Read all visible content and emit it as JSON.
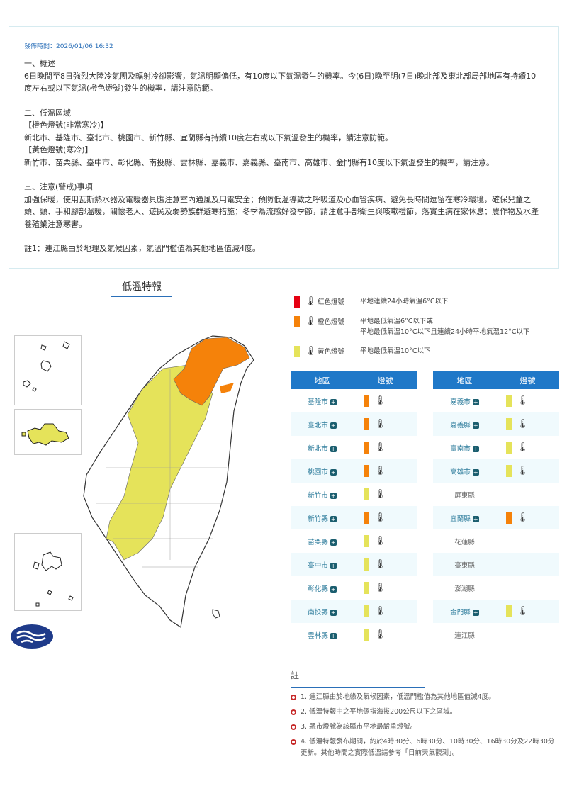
{
  "notice": {
    "pubtime": "發佈時間：2026/01/06 16:32",
    "s1_title": "一、概述",
    "s1_body": "6日晚間至8日強烈大陸冷氣團及輻射冷卻影響，氣溫明顯偏低，有10度以下氣溫發生的機率。今(6日)晚至明(7日)晚北部及東北部局部地區有持續10度左右或以下氣溫(橙色燈號)發生的機率，請注意防範。",
    "s2_title": "二、低溫區域",
    "orange_head": "【橙色燈號(非常寒冷)】",
    "orange_body": "新北市、基隆市、臺北市、桃園市、新竹縣、宜蘭縣有持續10度左右或以下氣溫發生的機率，請注意防範。",
    "yellow_head": "【黃色燈號(寒冷)】",
    "yellow_body": "新竹市、苗栗縣、臺中市、彰化縣、南投縣、雲林縣、嘉義市、嘉義縣、臺南市、高雄市、金門縣有10度以下氣溫發生的機率，請注意。",
    "s3_title": "三、注意(警戒)事項",
    "s3_body": "加強保暖，使用瓦斯熱水器及電暖器具應注意室內通風及用電安全；預防低溫導致之呼吸道及心血管疾病、避免長時間逗留在寒冷環境，確保兒童之頭、頸、手和腳部溫暖，關懷老人、遊民及弱勢族群避寒措施；冬季為流感好發季節，請注意手部衛生與咳嗽禮節，落實生病在家休息；農作物及水產養殖業注意寒害。",
    "note1": "註1：連江縣由於地理及氣候因素，氣溫門檻值為其他地區值減4度。"
  },
  "map_title": "低溫特報",
  "colors": {
    "red": "#e60012",
    "orange": "#f5820a",
    "yellow": "#e5e35a",
    "header": "#1f78c8"
  },
  "legend": [
    {
      "color": "red",
      "name": "紅色燈號",
      "desc": [
        "平地連續24小時氣溫6°C以下"
      ]
    },
    {
      "color": "orange",
      "name": "橙色燈號",
      "desc": [
        "平地最低氣溫6°C以下或",
        "平地最低氣溫10°C以下且連續24小時平地氣溫12°C以下"
      ]
    },
    {
      "color": "yellow",
      "name": "黃色燈號",
      "desc": [
        "平地最低氣溫10°C以下"
      ]
    }
  ],
  "table_headers": [
    "地區",
    "燈號"
  ],
  "left_table": [
    {
      "name": "基隆市",
      "level": "orange"
    },
    {
      "name": "臺北市",
      "level": "orange"
    },
    {
      "name": "新北市",
      "level": "orange"
    },
    {
      "name": "桃園市",
      "level": "orange"
    },
    {
      "name": "新竹市",
      "level": "yellow"
    },
    {
      "name": "新竹縣",
      "level": "orange"
    },
    {
      "name": "苗栗縣",
      "level": "yellow"
    },
    {
      "name": "臺中市",
      "level": "yellow"
    },
    {
      "name": "彰化縣",
      "level": "yellow"
    },
    {
      "name": "南投縣",
      "level": "yellow"
    },
    {
      "name": "雲林縣",
      "level": "yellow"
    }
  ],
  "right_table": [
    {
      "name": "嘉義市",
      "level": "yellow"
    },
    {
      "name": "嘉義縣",
      "level": "yellow"
    },
    {
      "name": "臺南市",
      "level": "yellow"
    },
    {
      "name": "高雄市",
      "level": "yellow"
    },
    {
      "name": "屏東縣",
      "level": ""
    },
    {
      "name": "宜蘭縣",
      "level": "orange"
    },
    {
      "name": "花蓮縣",
      "level": ""
    },
    {
      "name": "臺東縣",
      "level": ""
    },
    {
      "name": "澎湖縣",
      "level": ""
    },
    {
      "name": "金門縣",
      "level": "yellow"
    },
    {
      "name": "連江縣",
      "level": ""
    }
  ],
  "notes": {
    "title": "註",
    "items": [
      "1. 連江縣由於地緣及氣候因素，低溫門檻值為其他地區值減4度。",
      "2. 低溫特報中之平地係指海拔200公尺以下之區域。",
      "3. 縣市燈號為該縣市平地最嚴重燈號。",
      "4. 低溫特報發布期間，約於4時30分、6時30分、10時30分、16時30分及22時30分更新。其他時間之實際低溫請參考「目前天氣觀測」。"
    ]
  }
}
